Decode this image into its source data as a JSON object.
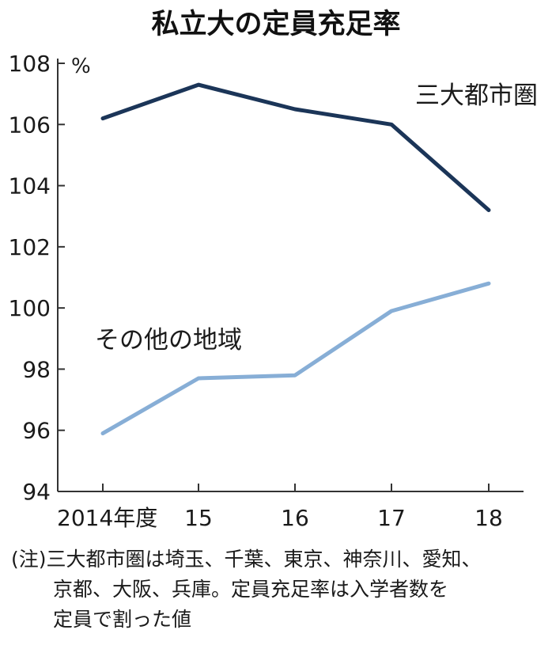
{
  "chart_data": {
    "type": "line",
    "title": "私立大の定員充足率",
    "ylabel": "%",
    "xlabel": "",
    "categories": [
      "2014年度",
      "15",
      "16",
      "17",
      "18"
    ],
    "x": [
      2014,
      2015,
      2016,
      2017,
      2018
    ],
    "ylim": [
      94,
      108
    ],
    "yticks": [
      94,
      96,
      98,
      100,
      102,
      104,
      106,
      108
    ],
    "grid": false,
    "series": [
      {
        "name": "三大都市圏",
        "values": [
          106.2,
          107.3,
          106.5,
          106.0,
          103.2
        ],
        "color": "#1b3558"
      },
      {
        "name": "その他の地域",
        "values": [
          95.9,
          97.7,
          97.8,
          99.9,
          100.8
        ],
        "color": "#87aed6"
      }
    ]
  },
  "note": {
    "prefix": "(注)",
    "lines": [
      "三大都市圏は埼玉、千葉、東京、神奈川、愛知、",
      "京都、大阪、兵庫。定員充足率は入学者数を",
      "定員で割った値"
    ]
  },
  "colors": {
    "axis": "#333333",
    "text": "#1a1a1a"
  }
}
